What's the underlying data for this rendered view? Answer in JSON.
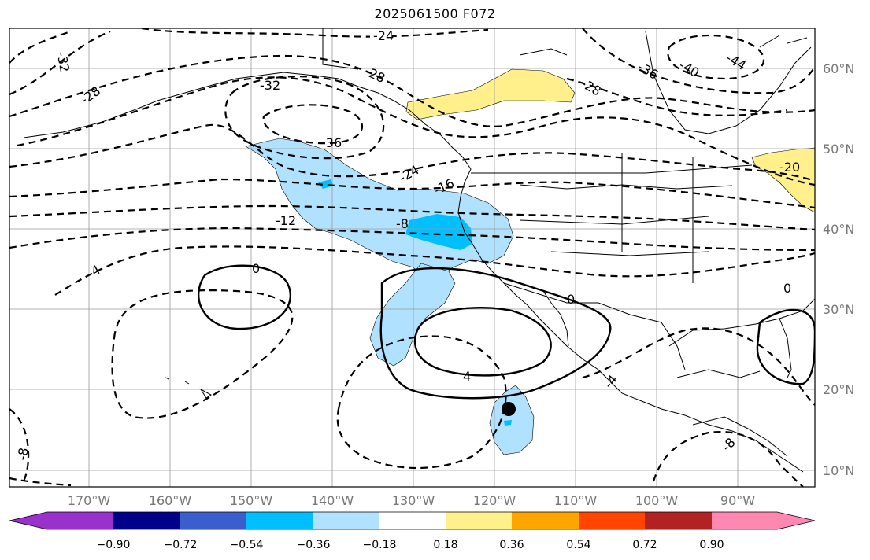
{
  "title": "2025061500 F072",
  "lat_labels": [
    "60°N",
    "50°N",
    "40°N",
    "30°N",
    "20°N",
    "10°N"
  ],
  "lon_labels": [
    "170°W",
    "160°W",
    "150°W",
    "140°W",
    "130°W",
    "120°W",
    "110°W",
    "100°W",
    "90°W"
  ],
  "contour_labels": [
    "-24",
    "-28",
    "-32",
    "-28",
    "-32",
    "-36",
    "-36",
    "-40",
    "-44",
    "-28",
    "-20",
    "-24",
    "-16",
    "-12",
    "-8",
    "-4",
    "0",
    "0",
    "4",
    "-4",
    "0",
    "-8",
    "-8"
  ],
  "marker": "storm-center",
  "colorbar": {
    "colors": [
      "#9932cc",
      "#00008b",
      "#3a5fcd",
      "#00bfff",
      "#b0e2ff",
      "#ffffff",
      "#fff08c",
      "#ffa500",
      "#ff4500",
      "#b22222",
      "#ff88b0"
    ],
    "tick_labels": [
      "−0.90",
      "−0.72",
      "−0.54",
      "−0.36",
      "−0.18",
      "0.18",
      "0.36",
      "0.54",
      "0.72",
      "0.90"
    ]
  }
}
